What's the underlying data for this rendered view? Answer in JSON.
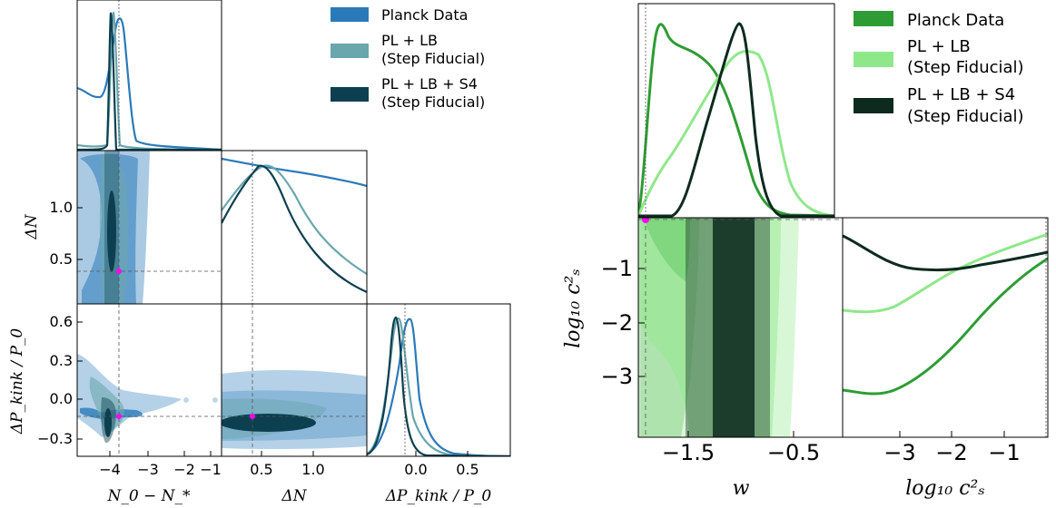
{
  "colors": {
    "planck_blue": "#2a7ab9",
    "pl_lb_teal": "#6aa6ad",
    "s4_navy": "#0c3f4f",
    "planck_green": "#2e9c34",
    "pl_lb_lightgreen": "#8ee88a",
    "s4_darkgreen": "#0d2a1e",
    "fiducial_marker": "#ff00ff"
  },
  "chart_data": [
    {
      "type": "triangle-corner",
      "legend": {
        "placement": "top-right",
        "entries": [
          {
            "line1": "Planck Data",
            "line2": "",
            "color": "#2a7ab9"
          },
          {
            "line1": "PL + LB",
            "line2": "(Step Fiducial)",
            "color": "#6aa6ad"
          },
          {
            "line1": "PL + LB + S4",
            "line2": "(Step Fiducial)",
            "color": "#0c3f4f"
          }
        ]
      },
      "parameters": [
        "N0_minus_Nstar",
        "DeltaN",
        "DeltaP"
      ],
      "xlabels": {
        "N0_minus_Nstar": "N_0 − N_*",
        "DeltaN": "ΔN",
        "DeltaP": "ΔP_kink / P_0"
      },
      "ylabels": {
        "DeltaN": "ΔN",
        "DeltaP": "ΔP_kink / P_0"
      },
      "ticks": {
        "N0_minus_Nstar": [
          "−4",
          "−3",
          "−2",
          "−1"
        ],
        "DeltaN_x": [
          "0.5",
          "1.0"
        ],
        "DeltaP_x": [
          "0.0",
          "0.5"
        ],
        "DeltaN_y": [
          "0.5",
          "1.0"
        ],
        "DeltaP_y": [
          "0.6",
          "0.3",
          "0.0",
          "−0.3"
        ]
      },
      "ranges": {
        "N0_minus_Nstar": [
          -4.8,
          -0.7
        ],
        "DeltaN": [
          0.05,
          1.45
        ],
        "DeltaP": [
          -0.4,
          0.7
        ]
      },
      "fiducial": {
        "N0_minus_Nstar": -3.7,
        "DeltaN": 0.35,
        "DeltaP": -0.11
      }
    },
    {
      "type": "triangle-corner",
      "legend": {
        "placement": "top-right",
        "entries": [
          {
            "line1": "Planck Data",
            "line2": "",
            "color": "#2e9c34"
          },
          {
            "line1": "PL + LB",
            "line2": "(Step Fiducial)",
            "color": "#8ee88a"
          },
          {
            "line1": "PL + LB + S4",
            "line2": "(Step Fiducial)",
            "color": "#0d2a1e"
          }
        ]
      },
      "parameters": [
        "w",
        "log10_cs2"
      ],
      "xlabels": {
        "w": "w",
        "log10_cs2": "log₁₀ c²ₛ"
      },
      "ylabels": {
        "log10_cs2": "log₁₀ c²ₛ"
      },
      "ticks": {
        "w": [
          "−1.5",
          "−0.5"
        ],
        "log10_cs2_x": [
          "−3",
          "−2",
          "−1"
        ],
        "log10_cs2_y": [
          "−1",
          "−2",
          "−3"
        ]
      },
      "ranges": {
        "w": [
          -2.0,
          0.0
        ],
        "log10_cs2": [
          -4.0,
          0.0
        ]
      },
      "fiducial": {
        "w": -1.9,
        "log10_cs2": -0.02
      }
    }
  ]
}
